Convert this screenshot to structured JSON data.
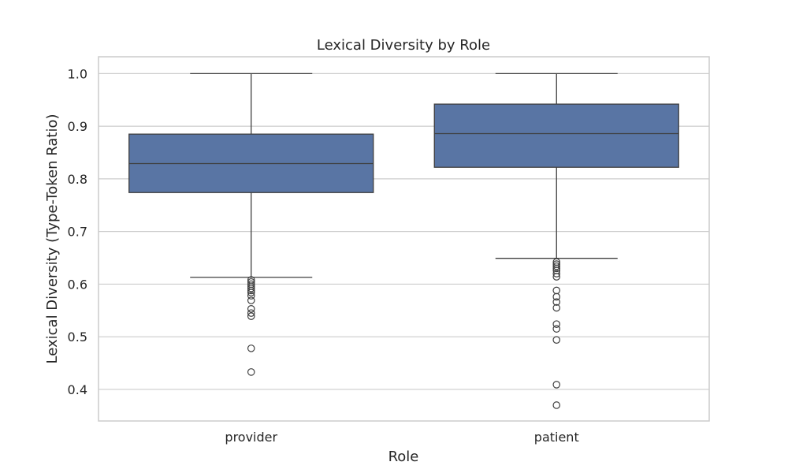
{
  "chart_data": {
    "type": "box",
    "title": "Lexical Diversity by Role",
    "xlabel": "Role",
    "ylabel": "Lexical Diversity (Type-Token Ratio)",
    "ylim": [
      0.34,
      1.032
    ],
    "yticks": [
      0.4,
      0.5,
      0.6,
      0.7,
      0.8,
      0.9,
      1.0
    ],
    "ytick_labels": [
      "0.4",
      "0.5",
      "0.6",
      "0.7",
      "0.8",
      "0.9",
      "1.0"
    ],
    "grid": true,
    "box_color": "#5975a4",
    "categories": [
      "provider",
      "patient"
    ],
    "boxes": [
      {
        "category": "provider",
        "whisker_low": 0.613,
        "q1": 0.774,
        "median": 0.829,
        "q3": 0.885,
        "whisker_high": 1.0,
        "outliers": [
          0.608,
          0.604,
          0.6,
          0.596,
          0.592,
          0.588,
          0.584,
          0.578,
          0.569,
          0.553,
          0.545,
          0.539,
          0.478,
          0.433
        ]
      },
      {
        "category": "patient",
        "whisker_low": 0.649,
        "q1": 0.822,
        "median": 0.886,
        "q3": 0.942,
        "whisker_high": 1.0,
        "outliers": [
          0.642,
          0.638,
          0.634,
          0.63,
          0.626,
          0.62,
          0.614,
          0.588,
          0.576,
          0.566,
          0.555,
          0.524,
          0.515,
          0.494,
          0.409,
          0.37
        ]
      }
    ]
  }
}
